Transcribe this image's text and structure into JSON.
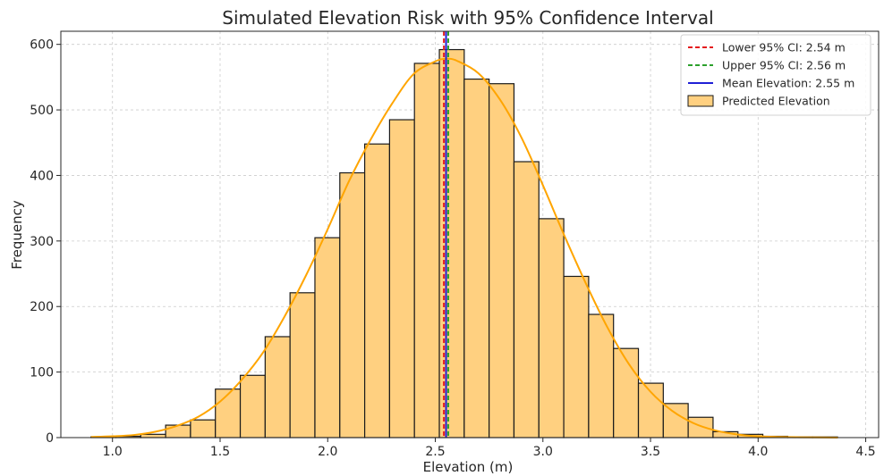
{
  "chart_data": {
    "type": "histogram",
    "title": "Simulated Elevation Risk with 95% Confidence Interval",
    "xlabel": "Elevation (m)",
    "ylabel": "Frequency",
    "xlim": [
      0.76,
      4.56
    ],
    "ylim": [
      0,
      620
    ],
    "xticks": [
      1.0,
      1.5,
      2.0,
      2.5,
      3.0,
      3.5,
      4.0,
      4.5
    ],
    "xtick_labels": [
      "1.0",
      "1.5",
      "2.0",
      "2.5",
      "3.0",
      "3.5",
      "4.0",
      "4.5"
    ],
    "yticks": [
      0,
      100,
      200,
      300,
      400,
      500,
      600
    ],
    "ytick_labels": [
      "0",
      "100",
      "200",
      "300",
      "400",
      "500",
      "600"
    ],
    "grid": true,
    "legend_position": "top-right",
    "bin_edges": [
      0.9,
      1.0156,
      1.1313,
      1.2469,
      1.3625,
      1.4781,
      1.5938,
      1.7094,
      1.825,
      1.9406,
      2.0563,
      2.1719,
      2.2875,
      2.4031,
      2.5188,
      2.6344,
      2.75,
      2.8656,
      2.9813,
      3.0969,
      3.2125,
      3.3281,
      3.4438,
      3.5594,
      3.675,
      3.7906,
      3.9063,
      4.0219,
      4.1375,
      4.2531,
      4.3688
    ],
    "counts": [
      1,
      2,
      5,
      19,
      27,
      74,
      95,
      154,
      221,
      305,
      404,
      448,
      485,
      571,
      592,
      547,
      540,
      421,
      334,
      246,
      188,
      136,
      83,
      52,
      31,
      9,
      5,
      2,
      1,
      1
    ],
    "kde": {
      "name": "",
      "x": [
        0.9,
        1.0,
        1.1,
        1.2,
        1.3,
        1.4,
        1.5,
        1.6,
        1.7,
        1.8,
        1.9,
        2.0,
        2.1,
        2.2,
        2.3,
        2.4,
        2.5,
        2.55,
        2.6,
        2.7,
        2.8,
        2.9,
        3.0,
        3.1,
        3.2,
        3.3,
        3.4,
        3.5,
        3.6,
        3.7,
        3.8,
        3.9,
        4.0,
        4.1,
        4.2,
        4.37
      ],
      "y": [
        1,
        2,
        4,
        9,
        18,
        32,
        55,
        88,
        130,
        185,
        248,
        318,
        392,
        455,
        510,
        555,
        574,
        578,
        575,
        556,
        516,
        458,
        385,
        308,
        235,
        168,
        112,
        70,
        41,
        22,
        11,
        5,
        2,
        1,
        0.5,
        0
      ]
    },
    "series": [
      {
        "name": "Lower 95% CI: 2.54 m",
        "type": "vline",
        "value": 2.54,
        "color": "#e41a1c",
        "style": "dashed"
      },
      {
        "name": "Upper 95% CI: 2.56 m",
        "type": "vline",
        "value": 2.56,
        "color": "#2ca02c",
        "style": "dashed"
      },
      {
        "name": "Mean Elevation: 2.55 m",
        "type": "vline",
        "value": 2.55,
        "color": "#1f1fd6",
        "style": "solid"
      },
      {
        "name": "Predicted Elevation",
        "type": "bar",
        "color": "#ffd080"
      }
    ],
    "colors": {
      "bar_fill": "#ffd080",
      "bar_edge": "#1a1a1a",
      "kde": "#ffa500",
      "grid": "#cccccc"
    }
  }
}
